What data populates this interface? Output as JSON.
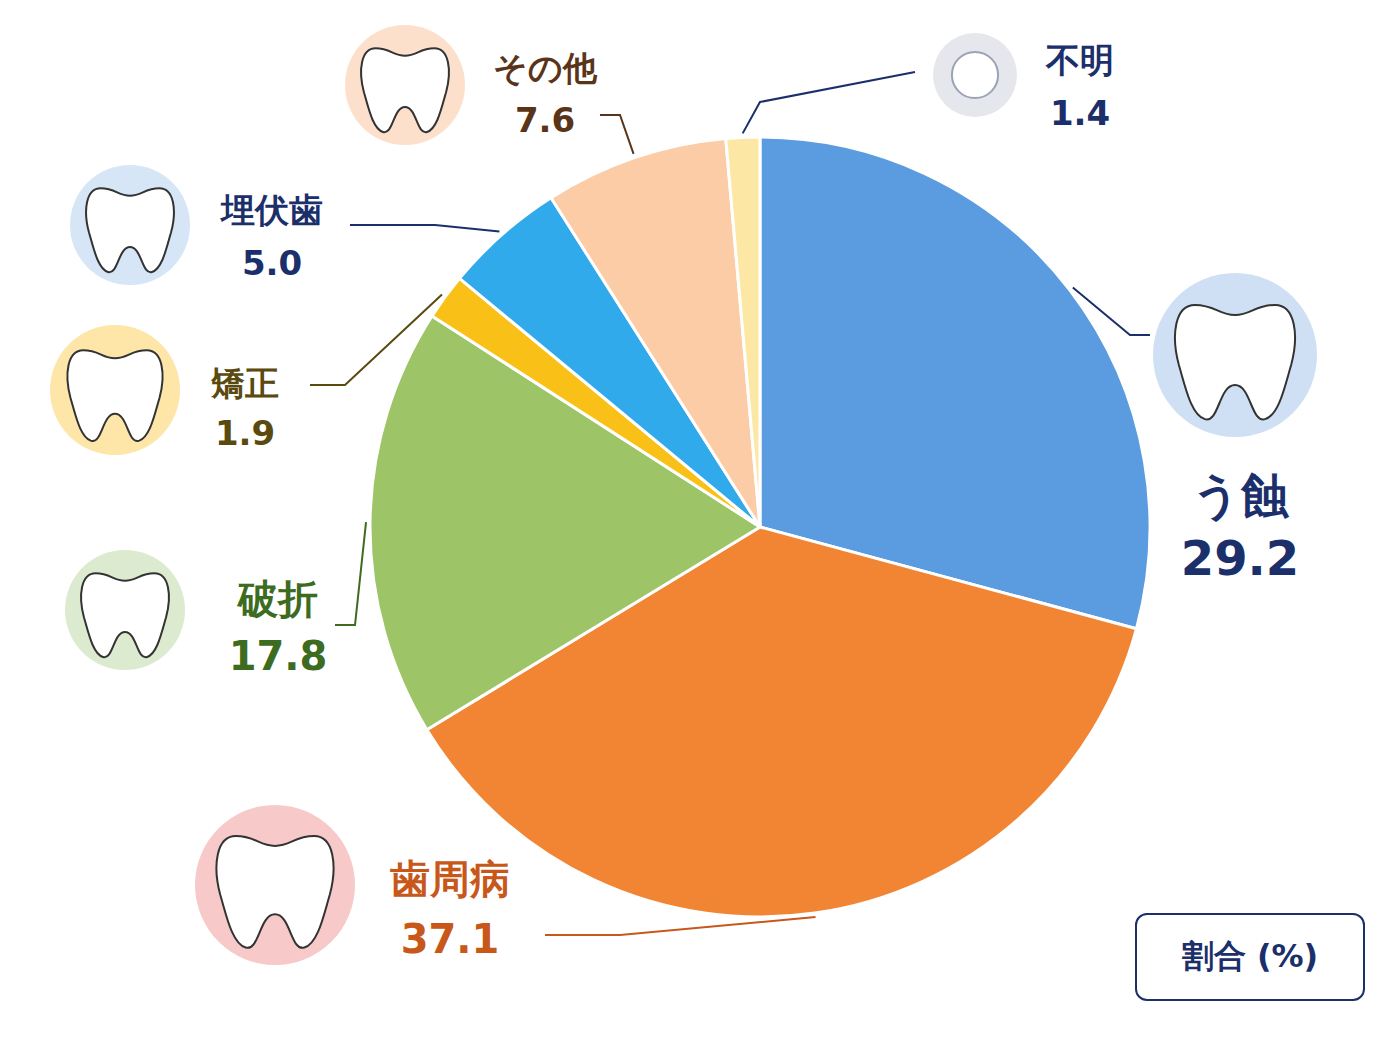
{
  "chart_data": {
    "type": "pie",
    "categories": [
      "う蝕",
      "歯周病",
      "破折",
      "矯正",
      "埋伏歯",
      "その他",
      "不明"
    ],
    "values": [
      29.2,
      37.1,
      17.8,
      1.9,
      5.0,
      7.6,
      1.4
    ],
    "value_labels": [
      "29.2",
      "37.1",
      "17.8",
      "1.9",
      "5.0",
      "7.6",
      "1.4"
    ],
    "colors": [
      "#5b9bdf",
      "#f28533",
      "#9dc466",
      "#f9c117",
      "#30aaeb",
      "#fccca6",
      "#fce8a4"
    ],
    "data_labels": true,
    "annotations": [
      "割合 (%)"
    ]
  }
}
